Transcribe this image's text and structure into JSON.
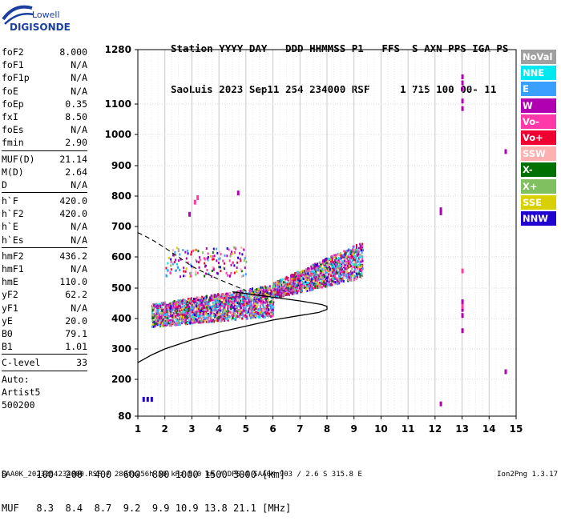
{
  "logo": {
    "brand_top": "Lowell",
    "brand_bottom": "DIGISONDE"
  },
  "header": {
    "line1": "Station YYYY DAY   DDD HHMMSS P1   FFS  S AXN PPS IGA PS",
    "line2": "SaoLuis 2023 Sep11 254 234000 RSF     1 715 100 00- 11"
  },
  "params": {
    "group1": [
      {
        "label": "foF2",
        "value": "8.000"
      },
      {
        "label": "foF1",
        "value": "N/A"
      },
      {
        "label": "foF1p",
        "value": "N/A"
      },
      {
        "label": "foE",
        "value": "N/A"
      },
      {
        "label": "foEp",
        "value": "0.35"
      },
      {
        "label": "fxI",
        "value": "8.50"
      },
      {
        "label": "foEs",
        "value": "N/A"
      },
      {
        "label": "fmin",
        "value": "2.90"
      }
    ],
    "group2": [
      {
        "label": "MUF(D)",
        "value": "21.14"
      },
      {
        "label": "M(D)",
        "value": "2.64"
      },
      {
        "label": "D",
        "value": "N/A"
      }
    ],
    "group3": [
      {
        "label": "h`F",
        "value": "420.0"
      },
      {
        "label": "h`F2",
        "value": "420.0"
      },
      {
        "label": "h`E",
        "value": "N/A"
      },
      {
        "label": "h`Es",
        "value": "N/A"
      }
    ],
    "group4": [
      {
        "label": "hmF2",
        "value": "436.2"
      },
      {
        "label": "hmF1",
        "value": "N/A"
      },
      {
        "label": "hmE",
        "value": "110.0"
      },
      {
        "label": "yF2",
        "value": "62.2"
      },
      {
        "label": "yF1",
        "value": "N/A"
      },
      {
        "label": "yE",
        "value": "20.0"
      },
      {
        "label": "B0",
        "value": "79.1"
      },
      {
        "label": "B1",
        "value": "1.01"
      }
    ],
    "group5": [
      {
        "label": "C-level",
        "value": "33"
      }
    ],
    "auto_lines": [
      "Auto:",
      "Artist5",
      "500200"
    ]
  },
  "legend": [
    {
      "name": "NoVal",
      "color": "#a0a0a0"
    },
    {
      "name": "NNE",
      "color": "#00e8f0"
    },
    {
      "name": "E",
      "color": "#3aa0ff"
    },
    {
      "name": "W",
      "color": "#b000b0"
    },
    {
      "name": "Vo-",
      "color": "#ff3aa8"
    },
    {
      "name": "Vo+",
      "color": "#f00030"
    },
    {
      "name": "SSW",
      "color": "#ffb0b0"
    },
    {
      "name": "X-",
      "color": "#007000"
    },
    {
      "name": "X+",
      "color": "#80c060"
    },
    {
      "name": "SSE",
      "color": "#d8d000"
    },
    {
      "name": "NNW",
      "color": "#2000d0"
    }
  ],
  "muf_table": {
    "line1": "D     100  200  400  600  800 1000 1500 3000 [km]",
    "line2": "MUF   8.3  8.4  8.7  9.2  9.9 10.9 13.8 21.1 [MHz]"
  },
  "footer": {
    "left": "SAA0K_2023254234000.RSF / 280fx256h 50 kHz 5.0 km / DPS-4 SAA0K 903 / 2.6 S 315.8 E",
    "right": "Ion2Png 1.3.17"
  },
  "chart_data": {
    "type": "scatter",
    "title": "",
    "xlabel": "",
    "ylabel": "",
    "xlim": [
      1,
      15
    ],
    "ylim": [
      80,
      1280
    ],
    "x_ticks": [
      "1",
      "2",
      "3",
      "4",
      "5",
      "6",
      "7",
      "8",
      "9",
      "10",
      "11",
      "12",
      "13",
      "14",
      "15"
    ],
    "y_ticks": [
      "80",
      "200",
      "300",
      "400",
      "500",
      "600",
      "700",
      "800",
      "900",
      "1000",
      "1100",
      "1280"
    ],
    "y_tick_values": [
      80,
      200,
      300,
      400,
      500,
      600,
      700,
      800,
      900,
      1000,
      1100,
      1280
    ],
    "grid": true,
    "series": [
      {
        "name": "NNW",
        "points": [
          [
            1.2,
            135
          ],
          [
            1.35,
            135
          ],
          [
            1.5,
            135
          ]
        ]
      },
      {
        "name": "W",
        "points": [
          [
            12.2,
            755
          ],
          [
            12.2,
            745
          ],
          [
            13.0,
            1190
          ],
          [
            13.0,
            1170
          ],
          [
            13.0,
            1150
          ],
          [
            13.0,
            1110
          ],
          [
            13.0,
            1085
          ],
          [
            13.0,
            455
          ],
          [
            13.0,
            430
          ],
          [
            13.0,
            410
          ],
          [
            13.0,
            360
          ],
          [
            14.6,
            945
          ],
          [
            14.6,
            225
          ],
          [
            12.2,
            120
          ],
          [
            4.7,
            810
          ],
          [
            2.9,
            740
          ]
        ]
      },
      {
        "name": "Vo-",
        "points": [
          [
            13.0,
            555
          ],
          [
            13.0,
            440
          ],
          [
            3.2,
            795
          ],
          [
            3.1,
            780
          ]
        ]
      }
    ],
    "echo_bands": [
      {
        "name": "F-trace low",
        "x_range": [
          1.5,
          6.0
        ],
        "h_range": [
          370,
          520
        ]
      },
      {
        "name": "F-trace high",
        "x_range": [
          6.0,
          9.3
        ],
        "h_range": [
          470,
          650
        ]
      },
      {
        "name": "scatter mid",
        "x_range": [
          2.0,
          5.0
        ],
        "h_range": [
          520,
          640
        ]
      }
    ],
    "profile_curve": {
      "name": "profile",
      "points": [
        [
          1.0,
          255
        ],
        [
          1.5,
          280
        ],
        [
          2.0,
          300
        ],
        [
          3.0,
          330
        ],
        [
          4.0,
          355
        ],
        [
          5.0,
          375
        ],
        [
          6.0,
          395
        ],
        [
          7.0,
          410
        ],
        [
          7.7,
          420
        ],
        [
          8.0,
          430
        ],
        [
          8.0,
          440
        ],
        [
          7.8,
          446
        ],
        [
          7.0,
          458
        ],
        [
          6.0,
          470
        ],
        [
          5.0,
          482
        ],
        [
          4.5,
          488
        ]
      ]
    },
    "extrap_curve": {
      "name": "extrapolation",
      "points": [
        [
          1.0,
          680
        ],
        [
          1.5,
          658
        ],
        [
          2.0,
          630
        ],
        [
          2.5,
          600
        ],
        [
          3.0,
          570
        ],
        [
          3.5,
          548
        ],
        [
          4.0,
          528
        ],
        [
          4.5,
          510
        ],
        [
          5.0,
          492
        ]
      ]
    }
  }
}
